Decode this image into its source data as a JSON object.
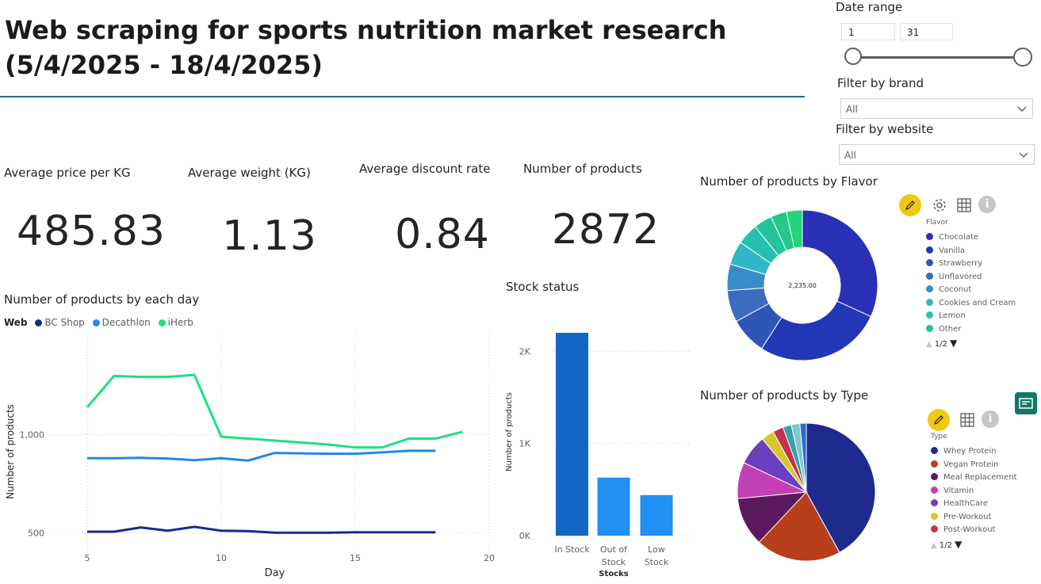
{
  "header": {
    "title": "Web scraping for sports nutrition market research (5/4/2025 - 18/4/2025)"
  },
  "filters": {
    "date_range": {
      "label": "Date range",
      "min": "1",
      "max": "31"
    },
    "brand": {
      "label": "Filter by brand",
      "value": "All"
    },
    "website": {
      "label": "Filter by website",
      "value": "All"
    }
  },
  "kpis": [
    {
      "label": "Average price per KG",
      "value": "485.83"
    },
    {
      "label": "Average weight (KG)",
      "value": "1.13"
    },
    {
      "label": "Average discount rate",
      "value": "0.84"
    },
    {
      "label": "Number of products",
      "value": "2872"
    }
  ],
  "chart_data": [
    {
      "type": "line",
      "title": "Number of products by each day",
      "legend_title": "Web",
      "xlabel": "Day",
      "ylabel": "Number of products",
      "xlim": [
        5,
        20
      ],
      "ylim": [
        400,
        1520
      ],
      "x_ticks": [
        "5",
        "10",
        "15",
        "20"
      ],
      "y_ticks": [
        "500",
        "1,000"
      ],
      "grid": true,
      "series": [
        {
          "name": "BC Shop",
          "color": "#1b2a88",
          "x": [
            5,
            6,
            7,
            8,
            9,
            10,
            11,
            12,
            13,
            14,
            15,
            16,
            17,
            18
          ],
          "values": [
            505,
            505,
            527,
            510,
            530,
            510,
            508,
            500,
            500,
            500,
            502,
            502,
            502,
            502
          ]
        },
        {
          "name": "Decathlon",
          "color": "#2289e6",
          "x": [
            5,
            6,
            7,
            8,
            9,
            10,
            11,
            12,
            13,
            14,
            15,
            16,
            17,
            18
          ],
          "values": [
            880,
            880,
            882,
            878,
            870,
            880,
            868,
            907,
            905,
            903,
            903,
            910,
            918,
            918
          ]
        },
        {
          "name": "iHerb",
          "color": "#1de27a",
          "x": [
            5,
            6,
            7,
            8,
            9,
            10,
            11,
            12,
            13,
            14,
            15,
            16,
            17,
            18,
            19
          ],
          "values": [
            1140,
            1300,
            1295,
            1295,
            1305,
            990,
            980,
            970,
            960,
            950,
            935,
            935,
            980,
            980,
            1015
          ]
        }
      ]
    },
    {
      "type": "bar",
      "title": "Stock status",
      "xlabel": "Stocks",
      "ylabel": "Number of products",
      "categories": [
        "In Stock",
        "Out of Stock",
        "Low Stock"
      ],
      "values": [
        2200,
        630,
        440
      ],
      "ylim": [
        0,
        2200
      ],
      "y_ticks": [
        "0K",
        "1K",
        "2K"
      ],
      "colors": [
        "#1167c4",
        "#2190f2",
        "#2190f2"
      ]
    },
    {
      "type": "pie",
      "subtype": "donut",
      "title": "Number of products by Flavor",
      "legend_title": "Flavor",
      "center_label": "2,235.00",
      "pager": "1/2",
      "slices": [
        {
          "name": "Chocolate",
          "value": 28,
          "color": "#2a2fb8"
        },
        {
          "name": "Vanilla",
          "value": 24,
          "color": "#2137b6"
        },
        {
          "name": "Strawberry",
          "value": 7,
          "color": "#2f55b6"
        },
        {
          "name": "Unflavored",
          "value": 6,
          "color": "#3a6cbf"
        },
        {
          "name": "Coconut",
          "value": 5,
          "color": "#3a8cc9"
        },
        {
          "name": "Cookies and Cream",
          "value": 4.5,
          "color": "#2fb6c9"
        },
        {
          "name": "Lemon",
          "value": 4,
          "color": "#27c0b0"
        },
        {
          "name": "Other",
          "value": 3.5,
          "color": "#24c39a"
        },
        {
          "name": "",
          "value": 3,
          "color": "#22c98a"
        },
        {
          "name": "",
          "value": 3,
          "color": "#1fd57a"
        }
      ]
    },
    {
      "type": "pie",
      "title": "Number of products by Type",
      "legend_title": "Type",
      "pager": "1/2",
      "slices": [
        {
          "name": "Whey Protein",
          "value": 42,
          "color": "#1e2a8c"
        },
        {
          "name": "Vegan Protein",
          "value": 20,
          "color": "#b83e1c"
        },
        {
          "name": "Meal Replacement",
          "value": 11.5,
          "color": "#5c1a5e"
        },
        {
          "name": "Vitamin",
          "value": 8.5,
          "color": "#c23fb5"
        },
        {
          "name": "HealthCare",
          "value": 7,
          "color": "#6a3fc0"
        },
        {
          "name": "Pre-Workout",
          "value": 3,
          "color": "#d8c72a"
        },
        {
          "name": "Post-Workout",
          "value": 2.5,
          "color": "#c2344a"
        },
        {
          "name": "",
          "value": 2,
          "color": "#36a0a8"
        },
        {
          "name": "",
          "value": 2,
          "color": "#7ec9c9"
        },
        {
          "name": "",
          "value": 1.5,
          "color": "#2a6ad0"
        }
      ]
    }
  ]
}
